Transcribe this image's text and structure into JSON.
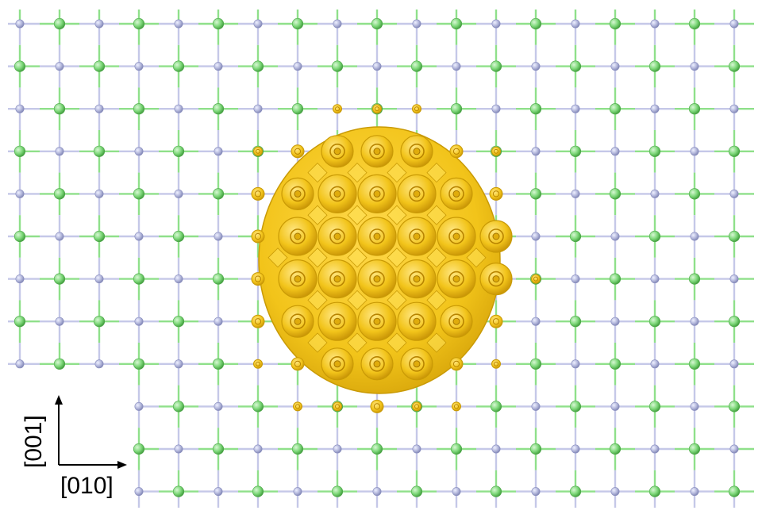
{
  "image": {
    "kind": "crystal-lattice-isosurface-render",
    "lattice": {
      "rows": 12,
      "cols": 19,
      "atom_types": [
        {
          "name": "green-atom",
          "color": "#7ed87a",
          "edge": "#4ea84a"
        },
        {
          "name": "lavender-atom",
          "color": "#b4b8dc",
          "edge": "#8a8fbf"
        }
      ],
      "bond_color_green": "#8fe08a",
      "bond_color_lavender": "#c5c8e8"
    },
    "density_blob": {
      "color": "#f2c41a",
      "shadow": "#c99a05",
      "highlight": "#ffe15a"
    }
  },
  "axes": {
    "vertical": "[001]",
    "horizontal": "[010]",
    "arrow_color": "#000000"
  }
}
